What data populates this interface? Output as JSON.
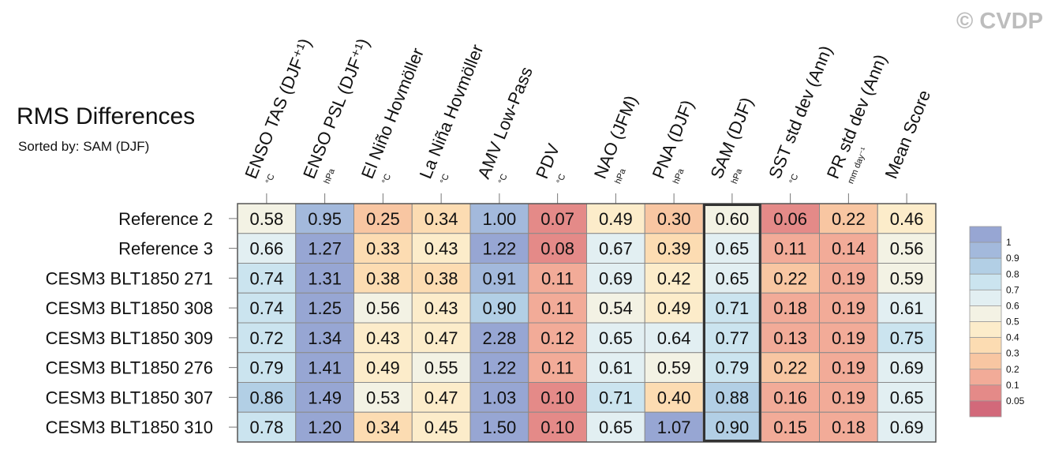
{
  "watermark": "© CVDP",
  "chart_data": {
    "type": "heatmap",
    "title": "RMS Differences",
    "subtitle": "Sorted by: SAM (DJF)",
    "columns": [
      {
        "label": "ENSO TAS (DJF⁺¹)",
        "unit": "°C"
      },
      {
        "label": "ENSO PSL (DJF⁺¹)",
        "unit": "hPa"
      },
      {
        "label": "El Niño Hovmöller",
        "unit": "°C"
      },
      {
        "label": "La Niña Hovmöller",
        "unit": "°C"
      },
      {
        "label": "AMV Low-Pass",
        "unit": "°C"
      },
      {
        "label": "PDV",
        "unit": "°C"
      },
      {
        "label": "NAO (JFM)",
        "unit": "hPa"
      },
      {
        "label": "PNA (DJF)",
        "unit": "hPa"
      },
      {
        "label": "SAM (DJF)",
        "unit": "hPa"
      },
      {
        "label": "SST std dev (Ann)",
        "unit": "°C"
      },
      {
        "label": "PR std dev (Ann)",
        "unit": "mm day⁻¹"
      },
      {
        "label": "Mean Score",
        "unit": ""
      }
    ],
    "rows": [
      "Reference 2",
      "Reference 3",
      "CESM3 BLT1850 271",
      "CESM3 BLT1850 308",
      "CESM3 BLT1850 309",
      "CESM3 BLT1850 276",
      "CESM3 BLT1850 307",
      "CESM3 BLT1850 310"
    ],
    "values": [
      [
        0.58,
        0.95,
        0.25,
        0.34,
        1.0,
        0.07,
        0.49,
        0.3,
        0.6,
        0.06,
        0.22,
        0.46
      ],
      [
        0.66,
        1.27,
        0.33,
        0.43,
        1.22,
        0.08,
        0.67,
        0.39,
        0.65,
        0.11,
        0.14,
        0.56
      ],
      [
        0.74,
        1.31,
        0.38,
        0.38,
        0.91,
        0.11,
        0.69,
        0.42,
        0.65,
        0.22,
        0.19,
        0.59
      ],
      [
        0.74,
        1.25,
        0.56,
        0.43,
        0.9,
        0.11,
        0.54,
        0.49,
        0.71,
        0.18,
        0.19,
        0.61
      ],
      [
        0.72,
        1.34,
        0.43,
        0.47,
        2.28,
        0.12,
        0.65,
        0.64,
        0.77,
        0.13,
        0.19,
        0.75
      ],
      [
        0.79,
        1.41,
        0.49,
        0.55,
        1.22,
        0.11,
        0.61,
        0.59,
        0.79,
        0.22,
        0.19,
        0.69
      ],
      [
        0.86,
        1.49,
        0.53,
        0.47,
        1.03,
        0.1,
        0.71,
        0.4,
        0.88,
        0.16,
        0.19,
        0.65
      ],
      [
        0.78,
        1.2,
        0.34,
        0.45,
        1.5,
        0.1,
        0.65,
        1.07,
        0.9,
        0.15,
        0.18,
        0.69
      ]
    ],
    "value_format": "0.00",
    "highlighted_column": "SAM (DJF)",
    "colorbar": {
      "position": "right",
      "levels": [
        "0.05",
        "0.1",
        "0.2",
        "0.3",
        "0.4",
        "0.5",
        "0.6",
        "0.7",
        "0.8",
        "0.9",
        "1"
      ],
      "bins": [
        {
          "max": 0.05,
          "color": "#d2697a"
        },
        {
          "max": 0.1,
          "color": "#e48a88"
        },
        {
          "max": 0.2,
          "color": "#f2ab98"
        },
        {
          "max": 0.3,
          "color": "#f8c6a2"
        },
        {
          "max": 0.4,
          "color": "#fcdcb2"
        },
        {
          "max": 0.5,
          "color": "#fcecca"
        },
        {
          "max": 0.6,
          "color": "#f3f2e4"
        },
        {
          "max": 0.7,
          "color": "#e2eff2"
        },
        {
          "max": 0.8,
          "color": "#cbe4ef"
        },
        {
          "max": 0.9,
          "color": "#b2cfe5"
        },
        {
          "max": 1.0,
          "color": "#a3b9dc"
        },
        {
          "max": 999,
          "color": "#97a6d3"
        }
      ]
    }
  }
}
